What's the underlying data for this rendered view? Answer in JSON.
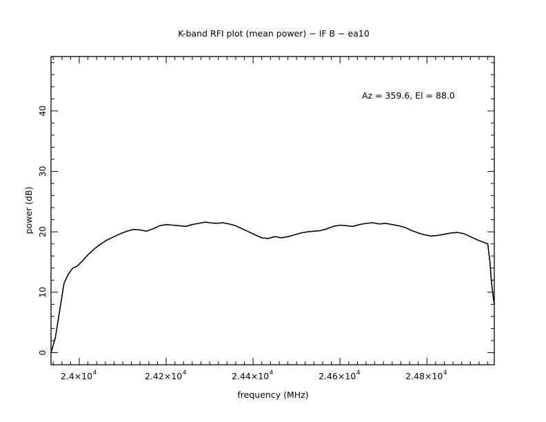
{
  "chart_data": {
    "type": "line",
    "title": "K-band RFI plot (mean power) − IF B − ea10",
    "xlabel": "frequency (MHz)",
    "ylabel": "power (dB)",
    "annotation": "Az = 359.6, El = 88.0",
    "xlim": [
      23935,
      24955
    ],
    "ylim": [
      -2,
      49
    ],
    "grid": false,
    "x_ticks": [
      {
        "value": 24000,
        "label": "2.4×10",
        "exp": "4"
      },
      {
        "value": 24200,
        "label": "2.42×10",
        "exp": "4"
      },
      {
        "value": 24400,
        "label": "2.44×10",
        "exp": "4"
      },
      {
        "value": 24600,
        "label": "2.46×10",
        "exp": "4"
      },
      {
        "value": 24800,
        "label": "2.48×10",
        "exp": "4"
      }
    ],
    "y_ticks": [
      {
        "value": 0,
        "label": "0"
      },
      {
        "value": 10,
        "label": "10"
      },
      {
        "value": 20,
        "label": "20"
      },
      {
        "value": 30,
        "label": "30"
      },
      {
        "value": 40,
        "label": "40"
      }
    ],
    "series": [
      {
        "color": "#000000",
        "x": [
          23935,
          23945,
          23955,
          23965,
          23975,
          23985,
          23995,
          24005,
          24020,
          24035,
          24050,
          24065,
          24080,
          24095,
          24110,
          24125,
          24140,
          24155,
          24170,
          24185,
          24200,
          24215,
          24230,
          24245,
          24260,
          24275,
          24290,
          24300,
          24315,
          24330,
          24345,
          24360,
          24375,
          24390,
          24405,
          24420,
          24435,
          24450,
          24465,
          24480,
          24495,
          24510,
          24525,
          24540,
          24555,
          24570,
          24585,
          24600,
          24615,
          24630,
          24645,
          24660,
          24675,
          24690,
          24705,
          24720,
          24735,
          24750,
          24765,
          24780,
          24795,
          24810,
          24825,
          24840,
          24855,
          24870,
          24885,
          24900,
          24915,
          24930,
          24940,
          24945,
          24948,
          24952,
          24955
        ],
        "y": [
          0.0,
          2.5,
          7.0,
          11.5,
          13.0,
          14.0,
          14.3,
          15.0,
          16.2,
          17.2,
          18.0,
          18.7,
          19.2,
          19.7,
          20.1,
          20.4,
          20.3,
          20.1,
          20.5,
          21.0,
          21.2,
          21.1,
          21.0,
          20.9,
          21.2,
          21.4,
          21.6,
          21.5,
          21.4,
          21.5,
          21.3,
          21.0,
          20.5,
          20.0,
          19.5,
          19.0,
          18.9,
          19.2,
          19.0,
          19.2,
          19.5,
          19.8,
          20.0,
          20.1,
          20.2,
          20.5,
          20.9,
          21.1,
          21.0,
          20.9,
          21.2,
          21.4,
          21.5,
          21.3,
          21.4,
          21.2,
          21.0,
          20.7,
          20.2,
          19.8,
          19.5,
          19.3,
          19.4,
          19.6,
          19.8,
          19.9,
          19.7,
          19.2,
          18.7,
          18.3,
          18.0,
          15.0,
          12.0,
          9.5,
          8.0
        ]
      }
    ]
  }
}
